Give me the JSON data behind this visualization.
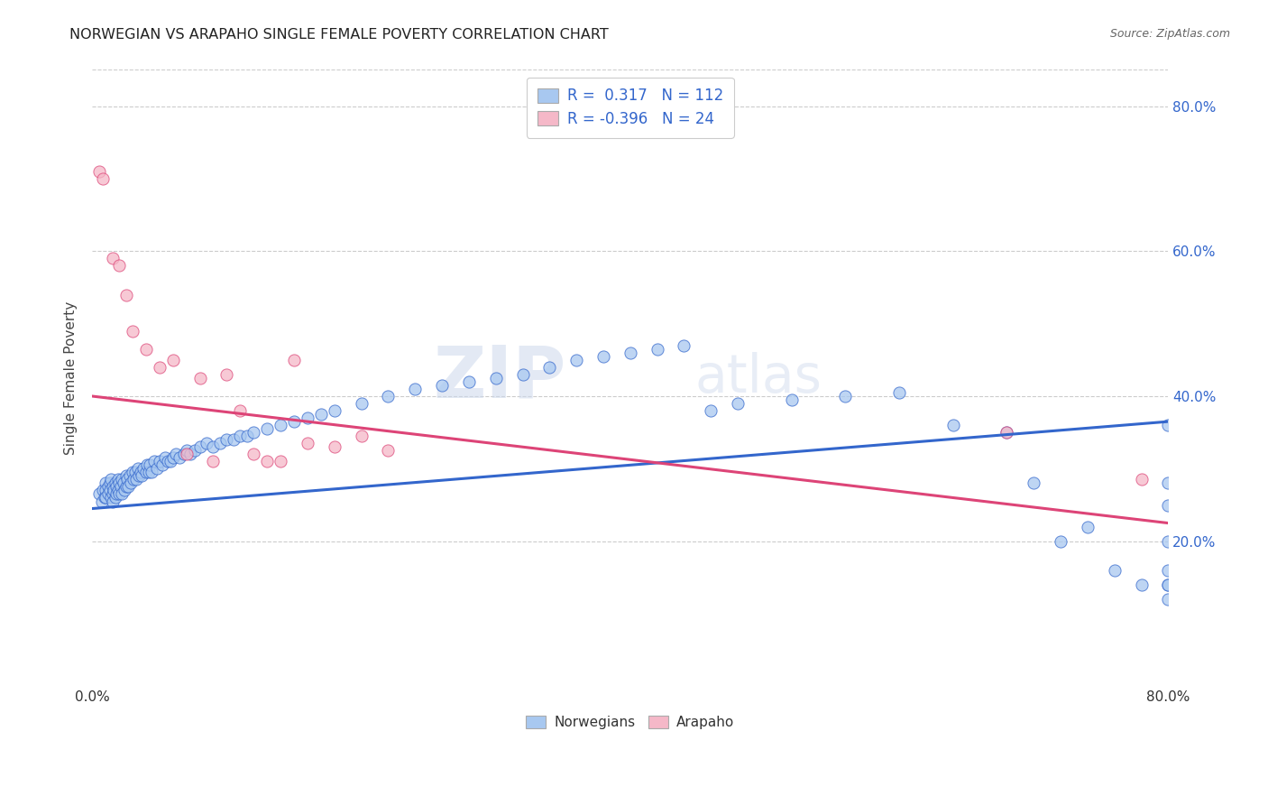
{
  "title": "NORWEGIAN VS ARAPAHO SINGLE FEMALE POVERTY CORRELATION CHART",
  "source": "Source: ZipAtlas.com",
  "ylabel": "Single Female Poverty",
  "xlim": [
    0.0,
    0.8
  ],
  "ylim": [
    0.0,
    0.85
  ],
  "yticks": [
    0.2,
    0.4,
    0.6,
    0.8
  ],
  "ytick_labels": [
    "20.0%",
    "40.0%",
    "60.0%",
    "80.0%"
  ],
  "norwegian_R": 0.317,
  "norwegian_N": 112,
  "arapaho_R": -0.396,
  "arapaho_N": 24,
  "norwegian_color": "#a8c8f0",
  "arapaho_color": "#f5b8c8",
  "norwegian_line_color": "#3366cc",
  "arapaho_line_color": "#dd4477",
  "watermark_color": "#ccd8ec",
  "background_color": "#ffffff",
  "nor_line_x0": 0.0,
  "nor_line_y0": 0.245,
  "nor_line_x1": 0.8,
  "nor_line_y1": 0.365,
  "ara_line_x0": 0.0,
  "ara_line_y0": 0.4,
  "ara_line_x1": 0.8,
  "ara_line_y1": 0.225,
  "norwegian_x": [
    0.005,
    0.007,
    0.008,
    0.009,
    0.01,
    0.01,
    0.01,
    0.012,
    0.012,
    0.013,
    0.013,
    0.014,
    0.014,
    0.015,
    0.015,
    0.015,
    0.016,
    0.017,
    0.017,
    0.018,
    0.018,
    0.019,
    0.019,
    0.02,
    0.02,
    0.021,
    0.022,
    0.022,
    0.023,
    0.024,
    0.025,
    0.025,
    0.026,
    0.027,
    0.028,
    0.029,
    0.03,
    0.031,
    0.032,
    0.033,
    0.034,
    0.035,
    0.036,
    0.037,
    0.038,
    0.04,
    0.041,
    0.042,
    0.043,
    0.044,
    0.046,
    0.048,
    0.05,
    0.052,
    0.054,
    0.056,
    0.058,
    0.06,
    0.062,
    0.065,
    0.068,
    0.07,
    0.073,
    0.076,
    0.08,
    0.085,
    0.09,
    0.095,
    0.1,
    0.105,
    0.11,
    0.115,
    0.12,
    0.13,
    0.14,
    0.15,
    0.16,
    0.17,
    0.18,
    0.2,
    0.22,
    0.24,
    0.26,
    0.28,
    0.3,
    0.32,
    0.34,
    0.36,
    0.38,
    0.4,
    0.42,
    0.44,
    0.46,
    0.48,
    0.52,
    0.56,
    0.6,
    0.64,
    0.68,
    0.7,
    0.72,
    0.74,
    0.76,
    0.78,
    0.8,
    0.8,
    0.8,
    0.8,
    0.8,
    0.8,
    0.8,
    0.8
  ],
  "norwegian_y": [
    0.265,
    0.255,
    0.27,
    0.26,
    0.28,
    0.27,
    0.26,
    0.275,
    0.265,
    0.28,
    0.27,
    0.26,
    0.285,
    0.275,
    0.265,
    0.255,
    0.27,
    0.28,
    0.26,
    0.275,
    0.265,
    0.285,
    0.27,
    0.28,
    0.265,
    0.275,
    0.285,
    0.265,
    0.28,
    0.27,
    0.29,
    0.275,
    0.285,
    0.275,
    0.29,
    0.28,
    0.295,
    0.285,
    0.295,
    0.285,
    0.3,
    0.29,
    0.295,
    0.29,
    0.3,
    0.295,
    0.305,
    0.295,
    0.305,
    0.295,
    0.31,
    0.3,
    0.31,
    0.305,
    0.315,
    0.31,
    0.31,
    0.315,
    0.32,
    0.315,
    0.32,
    0.325,
    0.32,
    0.325,
    0.33,
    0.335,
    0.33,
    0.335,
    0.34,
    0.34,
    0.345,
    0.345,
    0.35,
    0.355,
    0.36,
    0.365,
    0.37,
    0.375,
    0.38,
    0.39,
    0.4,
    0.41,
    0.415,
    0.42,
    0.425,
    0.43,
    0.44,
    0.45,
    0.455,
    0.46,
    0.465,
    0.47,
    0.38,
    0.39,
    0.395,
    0.4,
    0.405,
    0.36,
    0.35,
    0.28,
    0.2,
    0.22,
    0.16,
    0.14,
    0.12,
    0.16,
    0.25,
    0.2,
    0.14,
    0.36,
    0.28,
    0.14
  ],
  "arapaho_x": [
    0.005,
    0.008,
    0.015,
    0.02,
    0.025,
    0.03,
    0.04,
    0.05,
    0.06,
    0.07,
    0.08,
    0.09,
    0.1,
    0.11,
    0.12,
    0.13,
    0.14,
    0.15,
    0.16,
    0.18,
    0.2,
    0.22,
    0.68,
    0.78
  ],
  "arapaho_y": [
    0.71,
    0.7,
    0.59,
    0.58,
    0.54,
    0.49,
    0.465,
    0.44,
    0.45,
    0.32,
    0.425,
    0.31,
    0.43,
    0.38,
    0.32,
    0.31,
    0.31,
    0.45,
    0.335,
    0.33,
    0.345,
    0.325,
    0.35,
    0.285
  ]
}
